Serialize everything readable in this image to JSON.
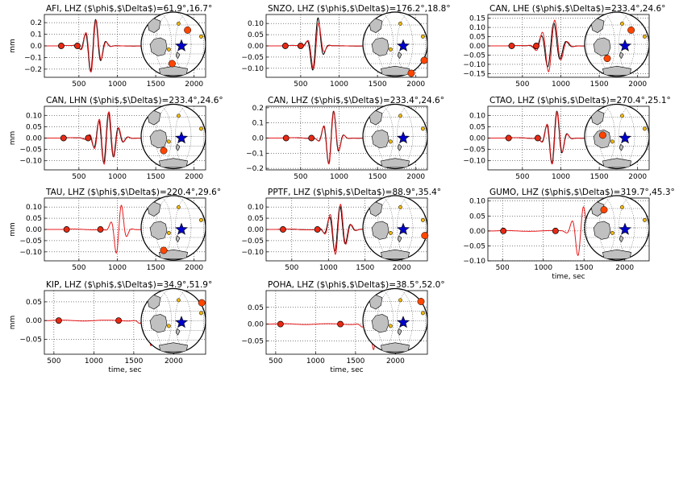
{
  "figure": {
    "ylabel": "mm",
    "xlabel": "time, sec",
    "colors": {
      "observed": "#000000",
      "synthetic": "#e8191b",
      "marker": "#e82a14",
      "station_large": "#ff4500",
      "station_small": "#f2b705",
      "epicenter": "#0000cc",
      "land": "#c0c0c0"
    },
    "map_icons": [
      "globe-map",
      "epicenter-star-icon",
      "station-marker"
    ]
  },
  "chart_data": [
    {
      "type": "line",
      "title": "AFI, LHZ ($\\phi$,$\\Delta$)=61.9°,16.7°",
      "station": "AFI",
      "channel": "LHZ",
      "azimuth": "61.9°",
      "distance": "16.7°",
      "xlim": [
        50,
        2150
      ],
      "ylim": [
        -0.27,
        0.27
      ],
      "xticks": [
        "500",
        "1000",
        "1500",
        "2000"
      ],
      "yticks": [
        "0.2",
        "0.1",
        "0.0",
        "−0.1",
        "−0.2"
      ],
      "yticks_v": [
        0.2,
        0.1,
        0.0,
        -0.1,
        -0.2
      ],
      "picks": [
        270,
        480
      ],
      "wave": {
        "center": 690,
        "amp": 0.24,
        "sigma": 120,
        "period": 140,
        "ratio": 1.0,
        "shift": 6,
        "start": 220,
        "end": 1550
      },
      "map": {
        "big": [
          [
            0.72,
            0.28
          ],
          [
            0.48,
            0.8
          ]
        ],
        "small": [
          [
            0.58,
            0.18
          ],
          [
            0.93,
            0.38
          ],
          [
            0.62,
            0.55
          ],
          [
            0.43,
            0.58
          ]
        ]
      }
    },
    {
      "type": "line",
      "title": "SNZO, LHZ ($\\phi$,$\\Delta$)=176.2°,18.8°",
      "station": "SNZO",
      "channel": "LHZ",
      "azimuth": "176.2°",
      "distance": "18.8°",
      "xlim": [
        50,
        2150
      ],
      "ylim": [
        -0.14,
        0.14
      ],
      "xticks": [
        "500",
        "1000",
        "1500",
        "2000"
      ],
      "yticks": [
        "0.10",
        "0.05",
        "0.00",
        "−0.05",
        "−0.10"
      ],
      "yticks_v": [
        0.1,
        0.05,
        0.0,
        -0.05,
        -0.1
      ],
      "picks": [
        300,
        500
      ],
      "wave": {
        "center": 700,
        "amp": 0.12,
        "sigma": 90,
        "period": 160,
        "ratio": 1.15,
        "shift": 10,
        "start": 250,
        "end": 1650
      },
      "map": {
        "big": [
          [
            0.75,
            0.95
          ],
          [
            0.95,
            0.75
          ]
        ],
        "small": [
          [
            0.58,
            0.18
          ],
          [
            0.93,
            0.38
          ],
          [
            0.62,
            0.55
          ],
          [
            0.43,
            0.58
          ]
        ]
      }
    },
    {
      "type": "line",
      "title": "CAN, LHE ($\\phi$,$\\Delta$)=233.4°,24.6°",
      "station": "CAN",
      "channel": "LHE",
      "azimuth": "233.4°",
      "distance": "24.6°",
      "xlim": [
        50,
        2150
      ],
      "ylim": [
        -0.17,
        0.17
      ],
      "xticks": [
        "500",
        "1000",
        "1500",
        "2000"
      ],
      "yticks": [
        "0.15",
        "0.10",
        "0.05",
        "0.00",
        "−0.05",
        "−0.10",
        "−0.15"
      ],
      "yticks_v": [
        0.15,
        0.1,
        0.05,
        0.0,
        -0.05,
        -0.1,
        -0.15
      ],
      "picks": [
        360,
        680
      ],
      "wave": {
        "center": 880,
        "amp": 0.15,
        "sigma": 150,
        "period": 170,
        "ratio": 0.85,
        "shift": 12,
        "start": 300,
        "end": 1500
      },
      "map": {
        "big": [
          [
            0.35,
            0.72
          ],
          [
            0.72,
            0.28
          ]
        ],
        "small": [
          [
            0.58,
            0.18
          ],
          [
            0.93,
            0.38
          ],
          [
            0.62,
            0.55
          ]
        ]
      }
    },
    {
      "type": "line",
      "title": "CAN, LHN ($\\phi$,$\\Delta$)=233.4°,24.6°",
      "station": "CAN",
      "channel": "LHN",
      "azimuth": "233.4°",
      "distance": "24.6°",
      "xlim": [
        50,
        2150
      ],
      "ylim": [
        -0.14,
        0.14
      ],
      "xticks": [
        "500",
        "1000",
        "1500",
        "2000"
      ],
      "yticks": [
        "0.10",
        "0.05",
        "0.00",
        "−0.05",
        "−0.10"
      ],
      "yticks_v": [
        0.1,
        0.05,
        0.0,
        -0.05,
        -0.1
      ],
      "picks": [
        300,
        620
      ],
      "wave": {
        "center": 860,
        "amp": 0.12,
        "sigma": 160,
        "period": 130,
        "ratio": 0.95,
        "shift": 6,
        "start": 250,
        "end": 1500
      },
      "map": {
        "big": [
          [
            0.35,
            0.72
          ]
        ],
        "small": [
          [
            0.58,
            0.18
          ],
          [
            0.93,
            0.38
          ],
          [
            0.62,
            0.55
          ],
          [
            0.43,
            0.58
          ]
        ]
      }
    },
    {
      "type": "line",
      "title": "CAN, LHZ ($\\phi$,$\\Delta$)=233.4°,24.6°",
      "station": "CAN",
      "channel": "LHZ",
      "azimuth": "233.4°",
      "distance": "24.6°",
      "xlim": [
        50,
        2150
      ],
      "ylim": [
        -0.21,
        0.21
      ],
      "xticks": [
        "500",
        "1000",
        "1500",
        "2000"
      ],
      "yticks": [
        "0.2",
        "0.1",
        "0.0",
        "−0.1",
        "−0.2"
      ],
      "yticks_v": [
        0.2,
        0.1,
        0.0,
        -0.1,
        -0.2
      ],
      "picks": [
        310,
        640
      ],
      "wave": {
        "center": 900,
        "amp": 0.19,
        "sigma": 110,
        "period": 140,
        "ratio": 1.0,
        "shift": 4,
        "start": 250,
        "end": 1500
      },
      "map": {
        "big": [],
        "small": [
          [
            0.58,
            0.18
          ],
          [
            0.93,
            0.38
          ],
          [
            0.62,
            0.55
          ],
          [
            0.43,
            0.58
          ]
        ]
      }
    },
    {
      "type": "line",
      "title": "CTAO, LHZ ($\\phi$,$\\Delta$)=270.4°,25.1°",
      "station": "CTAO",
      "channel": "LHZ",
      "azimuth": "270.4°",
      "distance": "25.1°",
      "xlim": [
        50,
        2150
      ],
      "ylim": [
        -0.14,
        0.14
      ],
      "xticks": [
        "500",
        "1000",
        "1500",
        "2000"
      ],
      "yticks": [
        "0.10",
        "0.05",
        "0.00",
        "−0.05",
        "−0.10"
      ],
      "yticks_v": [
        0.1,
        0.05,
        0.0,
        -0.05,
        -0.1
      ],
      "picks": [
        320,
        700
      ],
      "wave": {
        "center": 920,
        "amp": 0.125,
        "sigma": 120,
        "period": 140,
        "ratio": 1.0,
        "shift": 5,
        "start": 260,
        "end": 1500
      },
      "map": {
        "big": [
          [
            0.28,
            0.48
          ]
        ],
        "small": [
          [
            0.58,
            0.18
          ],
          [
            0.93,
            0.38
          ],
          [
            0.62,
            0.55
          ],
          [
            0.43,
            0.58
          ]
        ]
      }
    },
    {
      "type": "line",
      "title": "TAU, LHZ ($\\phi$,$\\Delta$)=220.4°,29.6°",
      "station": "TAU",
      "channel": "LHZ",
      "azimuth": "220.4°",
      "distance": "29.6°",
      "xlim": [
        50,
        2150
      ],
      "ylim": [
        -0.14,
        0.14
      ],
      "xticks": [
        "500",
        "1000",
        "1500",
        "2000"
      ],
      "yticks": [
        "0.10",
        "0.05",
        "0.00",
        "−0.05",
        "−0.10"
      ],
      "yticks_v": [
        0.1,
        0.05,
        0.0,
        -0.05,
        -0.1
      ],
      "picks": [
        340,
        780
      ],
      "wave": {
        "center": 1020,
        "amp": 0.125,
        "sigma": 90,
        "period": 150,
        "ratio": 0.0,
        "shift": 0,
        "start": 280,
        "end": 1500
      },
      "map": {
        "big": [
          [
            0.35,
            0.85
          ]
        ],
        "small": [
          [
            0.58,
            0.18
          ],
          [
            0.93,
            0.38
          ],
          [
            0.62,
            0.55
          ],
          [
            0.43,
            0.58
          ]
        ]
      }
    },
    {
      "type": "line",
      "title": "PPTF, LHZ ($\\phi$,$\\Delta$)=88.9°,35.4°",
      "station": "PPTF",
      "channel": "LHZ",
      "azimuth": "88.9°",
      "distance": "35.4°",
      "xlim": [
        150,
        2350
      ],
      "ylim": [
        -0.14,
        0.14
      ],
      "xticks": [
        "500",
        "1000",
        "1500",
        "2000"
      ],
      "yticks": [
        "0.10",
        "0.05",
        "0.00",
        "−0.05",
        "−0.10"
      ],
      "yticks_v": [
        0.1,
        0.05,
        0.0,
        -0.05,
        -0.1
      ],
      "picks": [
        380,
        850
      ],
      "wave": {
        "center": 1130,
        "amp": 0.12,
        "sigma": 140,
        "period": 150,
        "ratio": 0.9,
        "shift": 8,
        "start": 300,
        "end": 1700
      },
      "map": {
        "big": [
          [
            0.96,
            0.62
          ]
        ],
        "small": [
          [
            0.58,
            0.18
          ],
          [
            0.93,
            0.38
          ],
          [
            0.62,
            0.55
          ],
          [
            0.43,
            0.58
          ]
        ]
      }
    },
    {
      "type": "line",
      "title": "GUMO, LHZ ($\\phi$,$\\Delta$)=319.7°,45.3°",
      "station": "GUMO",
      "channel": "LHZ",
      "azimuth": "319.7°",
      "distance": "45.3°",
      "xlim": [
        320,
        2300
      ],
      "ylim": [
        -0.1,
        0.11
      ],
      "xticks": [
        "500",
        "1000",
        "1500",
        "2000"
      ],
      "yticks": [
        "0.10",
        "0.05",
        "0.00",
        "−0.05",
        "−0.10"
      ],
      "yticks_v": [
        0.1,
        0.05,
        0.0,
        -0.05,
        -0.1
      ],
      "picks": [
        510,
        1150
      ],
      "wave": {
        "center": 1460,
        "amp": 0.09,
        "sigma": 110,
        "period": 150,
        "ratio": 0.0,
        "shift": 0,
        "start": 400,
        "end": 1700
      },
      "xlabel": "time, sec",
      "map": {
        "big": [
          [
            0.3,
            0.22
          ]
        ],
        "small": [
          [
            0.58,
            0.18
          ],
          [
            0.93,
            0.38
          ],
          [
            0.62,
            0.55
          ],
          [
            0.43,
            0.58
          ]
        ]
      }
    },
    {
      "type": "line",
      "title": "KIP, LHZ ($\\phi$,$\\Delta$)=34.9°,51.9°",
      "station": "KIP",
      "channel": "LHZ",
      "azimuth": "34.9°",
      "distance": "51.9°",
      "xlim": [
        380,
        2400
      ],
      "ylim": [
        -0.09,
        0.08
      ],
      "xticks": [
        "500",
        "1000",
        "1500",
        "2000"
      ],
      "yticks": [
        "0.05",
        "0.00",
        "−0.05"
      ],
      "yticks_v": [
        0.05,
        0.0,
        -0.05
      ],
      "picks": [
        560,
        1310
      ],
      "wave": {
        "center": 1750,
        "amp": 0.075,
        "sigma": 120,
        "period": 150,
        "ratio": 0.0,
        "shift": 0,
        "start": 450,
        "end": 1900
      },
      "xlabel": "time, sec",
      "map": {
        "big": [
          [
            0.94,
            0.22
          ]
        ],
        "small": [
          [
            0.58,
            0.18
          ],
          [
            0.93,
            0.38
          ],
          [
            0.62,
            0.55
          ],
          [
            0.43,
            0.58
          ]
        ]
      }
    },
    {
      "type": "line",
      "title": "POHA, LHZ ($\\phi$,$\\Delta$)=38.5°,52.0°",
      "station": "POHA",
      "channel": "LHZ",
      "azimuth": "38.5°",
      "distance": "52.0°",
      "xlim": [
        380,
        2400
      ],
      "ylim": [
        -0.09,
        0.1
      ],
      "xticks": [
        "500",
        "1000",
        "1500",
        "2000"
      ],
      "yticks": [
        "0.05",
        "0.00",
        "−0.05"
      ],
      "yticks_v": [
        0.05,
        0.0,
        -0.05
      ],
      "picks": [
        560,
        1310
      ],
      "wave": {
        "center": 1760,
        "amp": 0.085,
        "sigma": 120,
        "period": 150,
        "ratio": 0.0,
        "shift": 0,
        "start": 450,
        "end": 1900
      },
      "xlabel": "time, sec",
      "map": {
        "big": [
          [
            0.9,
            0.2
          ]
        ],
        "small": [
          [
            0.58,
            0.18
          ],
          [
            0.93,
            0.38
          ],
          [
            0.62,
            0.55
          ],
          [
            0.43,
            0.58
          ]
        ]
      }
    }
  ]
}
